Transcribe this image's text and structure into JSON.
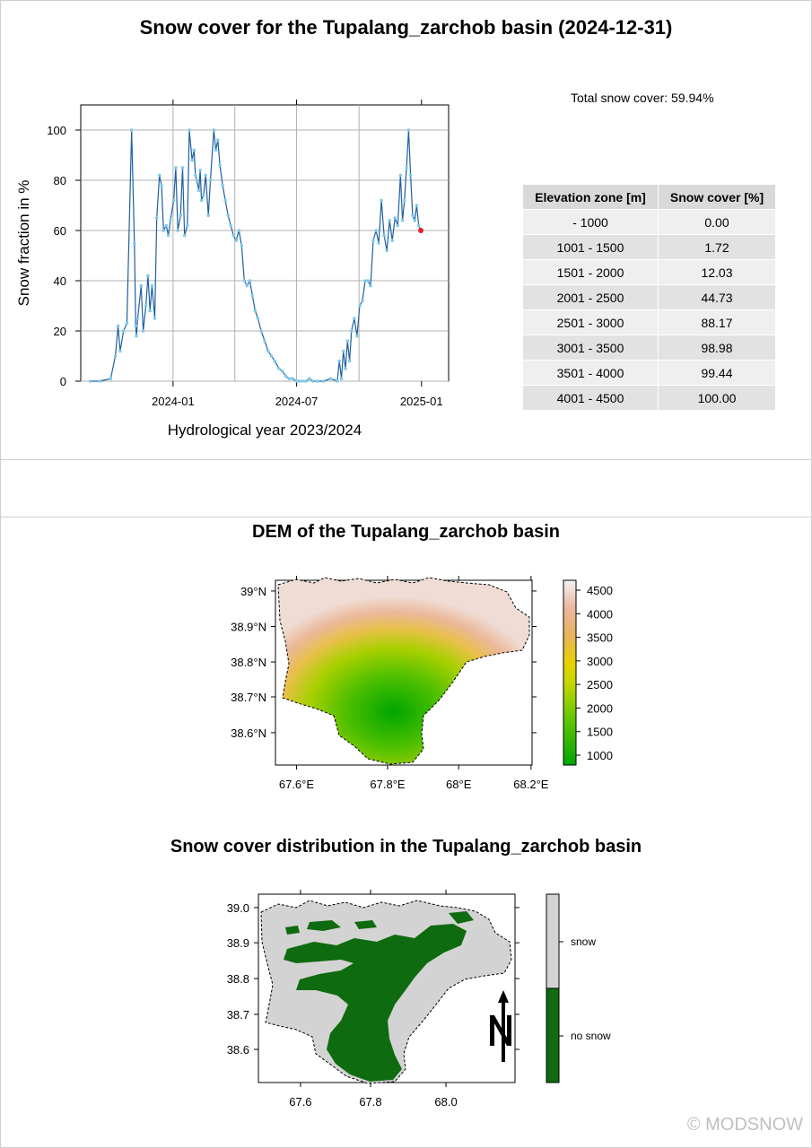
{
  "title": "Snow cover for the Tupalang_zarchob basin (2024-12-31)",
  "total_snow_cover": "Total snow cover: 59.94%",
  "elevation_table": {
    "headers": [
      "Elevation zone [m]",
      "Snow cover [%]"
    ],
    "rows": [
      [
        "- 1000",
        "0.00"
      ],
      [
        "1001 - 1500",
        "1.72"
      ],
      [
        "1501 - 2000",
        "12.03"
      ],
      [
        "2001 - 2500",
        "44.73"
      ],
      [
        "2501 - 3000",
        "88.17"
      ],
      [
        "3001 - 3500",
        "98.98"
      ],
      [
        "3501 - 4000",
        "99.44"
      ],
      [
        "4001 - 4500",
        "100.00"
      ]
    ]
  },
  "dem_title": "DEM of the Tupalang_zarchob basin",
  "snow_map_title": "Snow cover distribution in the Tupalang_zarchob basin",
  "copyright": "© MODSNOW",
  "colors": {
    "line": "#1f5fa0",
    "marker": "#7fc9e8",
    "current_point": "#e8202a",
    "snow": "#d3d3d3",
    "no_snow": "#0f6b0f"
  },
  "chart_data": [
    {
      "type": "line",
      "title": "",
      "xlabel": "Hydrological year 2023/2024",
      "ylabel": "Snow fraction in %",
      "ylim": [
        0,
        110
      ],
      "xlim": [
        "2023-08-18",
        "2025-02-10"
      ],
      "grid": true,
      "x_ticks": [
        "2024-01",
        "2024-07",
        "2025-01"
      ],
      "x_tick_dates": [
        "2024-01-01",
        "2024-07-01",
        "2025-01-01"
      ],
      "y_ticks": [
        0,
        20,
        40,
        60,
        80,
        100
      ],
      "vertical_gridlines": [
        "2024-01-01",
        "2024-04-01",
        "2024-07-01",
        "2024-10-01"
      ],
      "series": [
        {
          "x": [
            "2023-09-01",
            "2023-09-15",
            "2023-10-01",
            "2023-10-08",
            "2023-10-12",
            "2023-10-15",
            "2023-10-20",
            "2023-10-25",
            "2023-11-01",
            "2023-11-05",
            "2023-11-07",
            "2023-11-08",
            "2023-11-10",
            "2023-11-15",
            "2023-11-18",
            "2023-11-22",
            "2023-11-25",
            "2023-11-28",
            "2023-12-01",
            "2023-12-05",
            "2023-12-08",
            "2023-12-12",
            "2023-12-15",
            "2023-12-18",
            "2023-12-22",
            "2023-12-25",
            "2023-12-28",
            "2024-01-02",
            "2024-01-05",
            "2024-01-08",
            "2024-01-12",
            "2024-01-15",
            "2024-01-18",
            "2024-01-22",
            "2024-01-25",
            "2024-01-29",
            "2024-02-01",
            "2024-02-03",
            "2024-02-05",
            "2024-02-08",
            "2024-02-10",
            "2024-02-12",
            "2024-02-15",
            "2024-02-18",
            "2024-02-22",
            "2024-02-25",
            "2024-03-01",
            "2024-03-04",
            "2024-03-07",
            "2024-03-10",
            "2024-03-14",
            "2024-03-18",
            "2024-03-22",
            "2024-03-26",
            "2024-03-30",
            "2024-04-03",
            "2024-04-07",
            "2024-04-11",
            "2024-04-15",
            "2024-04-19",
            "2024-04-23",
            "2024-04-27",
            "2024-05-01",
            "2024-05-05",
            "2024-05-10",
            "2024-05-15",
            "2024-05-20",
            "2024-05-25",
            "2024-05-30",
            "2024-06-05",
            "2024-06-10",
            "2024-06-15",
            "2024-06-20",
            "2024-06-25",
            "2024-07-01",
            "2024-07-05",
            "2024-07-10",
            "2024-07-15",
            "2024-07-20",
            "2024-07-25",
            "2024-08-01",
            "2024-08-10",
            "2024-08-20",
            "2024-08-30",
            "2024-09-02",
            "2024-09-05",
            "2024-09-08",
            "2024-09-11",
            "2024-09-14",
            "2024-09-17",
            "2024-09-20",
            "2024-09-24",
            "2024-09-28",
            "2024-10-02",
            "2024-10-06",
            "2024-10-10",
            "2024-10-14",
            "2024-10-18",
            "2024-10-22",
            "2024-10-26",
            "2024-10-30",
            "2024-11-03",
            "2024-11-07",
            "2024-11-11",
            "2024-11-15",
            "2024-11-19",
            "2024-11-23",
            "2024-11-27",
            "2024-12-01",
            "2024-12-04",
            "2024-12-07",
            "2024-12-10",
            "2024-12-13",
            "2024-12-16",
            "2024-12-19",
            "2024-12-22",
            "2024-12-25",
            "2024-12-28",
            "2024-12-31"
          ],
          "y": [
            0,
            0,
            1,
            10,
            22,
            12,
            20,
            23,
            100,
            55,
            22,
            18,
            25,
            38,
            20,
            30,
            42,
            28,
            38,
            25,
            65,
            82,
            78,
            60,
            62,
            58,
            64,
            72,
            85,
            60,
            66,
            85,
            58,
            62,
            100,
            88,
            92,
            82,
            80,
            76,
            84,
            72,
            74,
            82,
            66,
            80,
            100,
            92,
            96,
            86,
            78,
            72,
            66,
            62,
            58,
            56,
            60,
            54,
            40,
            38,
            40,
            34,
            28,
            25,
            20,
            16,
            12,
            10,
            8,
            5,
            4,
            2,
            1,
            1,
            0,
            0,
            0,
            0,
            1,
            0,
            0,
            0,
            1,
            0,
            8,
            1,
            12,
            5,
            16,
            8,
            20,
            25,
            18,
            30,
            32,
            40,
            40,
            38,
            56,
            60,
            55,
            72,
            58,
            52,
            64,
            56,
            65,
            62,
            82,
            64,
            72,
            85,
            100,
            82,
            66,
            64,
            70,
            62,
            60
          ]
        }
      ],
      "current_point": {
        "x": "2024-12-31",
        "y": 60
      }
    },
    {
      "type": "heatmap",
      "title": "DEM of the Tupalang_zarchob basin",
      "x_ticks": [
        "67.6°E",
        "67.8°E",
        "68°E",
        "68.2°E"
      ],
      "y_ticks": [
        "39°N",
        "38.9°N",
        "38.8°N",
        "38.7°N",
        "38.6°N"
      ],
      "legend": [
        "4500",
        "4000",
        "3500",
        "3000",
        "2500",
        "2000",
        "1500",
        "1000"
      ]
    },
    {
      "type": "heatmap",
      "title": "Snow cover distribution in the Tupalang_zarchob basin",
      "x_ticks": [
        "67.6",
        "67.8",
        "68.0"
      ],
      "y_ticks": [
        "39.0",
        "38.9",
        "38.8",
        "38.7",
        "38.6"
      ],
      "legend": [
        "snow",
        "no snow"
      ]
    }
  ]
}
